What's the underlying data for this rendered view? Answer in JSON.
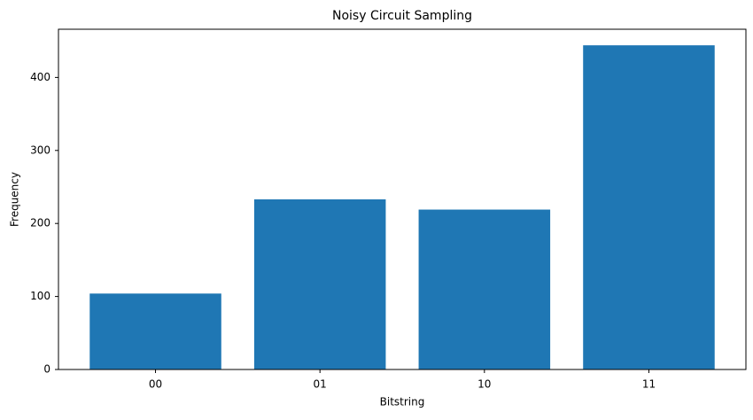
{
  "chart_data": {
    "type": "bar",
    "title": "Noisy Circuit Sampling",
    "x_label": "Bitstring",
    "y_label": "Frequency",
    "categories": [
      "00",
      "01",
      "10",
      "11"
    ],
    "values": [
      104,
      233,
      219,
      444
    ],
    "color": "#1f77b4",
    "ylim": [
      0,
      466
    ],
    "yticks": [
      0,
      100,
      200,
      300,
      400
    ],
    "grid": false
  }
}
